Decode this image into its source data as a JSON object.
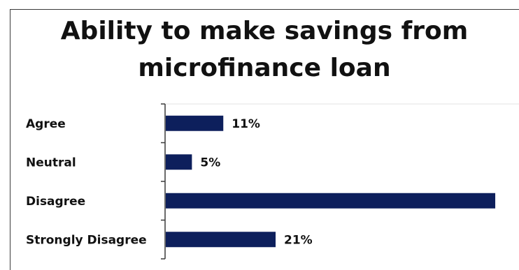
{
  "chart_data": {
    "type": "bar",
    "orientation": "horizontal",
    "title": "Ability to make savings from microfinance loan",
    "title_lines": [
      "Ability to make savings from",
      "microfinance loan"
    ],
    "categories": [
      "Agree",
      "Neutral",
      "Disagree",
      "Strongly Disagree"
    ],
    "values": [
      11,
      5,
      63,
      21
    ],
    "data_labels": [
      "11%",
      "5%",
      "",
      "21%"
    ],
    "unit": "%",
    "xlim": [
      0,
      65
    ],
    "grid": false,
    "legend": "none",
    "bar_color": "#0d1f5c"
  }
}
